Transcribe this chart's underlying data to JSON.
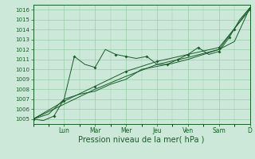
{
  "xlabel": "Pression niveau de la mer( hPa )",
  "ylim": [
    1004.5,
    1016.5
  ],
  "yticks": [
    1005,
    1006,
    1007,
    1008,
    1009,
    1010,
    1011,
    1012,
    1013,
    1014,
    1015,
    1016
  ],
  "day_labels": [
    "Lun",
    "Mar",
    "Mer",
    "Jeu",
    "Ven",
    "Sam",
    "D"
  ],
  "day_positions": [
    1,
    2,
    3,
    4,
    5,
    6,
    7
  ],
  "background_color": "#cce8d8",
  "grid_color": "#99ccaa",
  "line_color": "#1a5c2a",
  "series1_x": [
    0,
    0.33,
    0.67,
    1.0,
    1.33,
    1.67,
    2.0,
    2.33,
    2.67,
    3.0,
    3.33,
    3.67,
    4.0,
    4.33,
    4.67,
    5.0,
    5.33,
    5.67,
    6.0,
    6.33,
    6.67,
    7.0
  ],
  "series1_y": [
    1005.0,
    1004.85,
    1005.3,
    1007.0,
    1011.3,
    1010.5,
    1010.2,
    1012.0,
    1011.5,
    1011.3,
    1011.1,
    1011.3,
    1010.5,
    1010.5,
    1011.0,
    1011.5,
    1012.2,
    1011.5,
    1011.8,
    1013.2,
    1015.0,
    1016.2
  ],
  "series1_markers_x": [
    0,
    0.67,
    1.33,
    2.0,
    2.67,
    3.0,
    3.67,
    4.33,
    4.67,
    5.33,
    6.0,
    6.33,
    7.0
  ],
  "series1_markers_y": [
    1005.0,
    1005.3,
    1011.3,
    1010.2,
    1011.5,
    1011.3,
    1011.3,
    1010.5,
    1011.0,
    1012.2,
    1011.8,
    1013.2,
    1016.2
  ],
  "series2_x": [
    0,
    1.0,
    2.0,
    3.0,
    4.0,
    5.0,
    6.0,
    7.0
  ],
  "series2_y": [
    1005.0,
    1006.5,
    1008.0,
    1009.3,
    1010.5,
    1011.2,
    1012.0,
    1016.2
  ],
  "series3_x": [
    0,
    1.0,
    2.0,
    3.0,
    4.0,
    5.0,
    6.0,
    7.0
  ],
  "series3_y": [
    1005.0,
    1006.8,
    1008.3,
    1009.8,
    1010.8,
    1011.5,
    1012.2,
    1016.0
  ],
  "series3_markers_x": [
    0,
    1.0,
    2.0,
    3.0,
    4.0,
    5.0,
    6.0,
    6.5,
    7.0
  ],
  "series3_markers_y": [
    1005.0,
    1006.8,
    1008.3,
    1009.8,
    1010.8,
    1011.5,
    1012.2,
    1014.0,
    1016.0
  ],
  "series4_x": [
    0,
    0.5,
    1.0,
    1.5,
    2.0,
    2.5,
    3.0,
    3.5,
    4.0,
    4.5,
    5.0,
    5.5,
    6.0,
    6.5,
    7.0
  ],
  "series4_y": [
    1005.0,
    1005.5,
    1007.0,
    1007.5,
    1007.8,
    1008.5,
    1009.0,
    1010.0,
    1010.3,
    1010.6,
    1011.0,
    1011.5,
    1012.0,
    1012.8,
    1016.2
  ],
  "xlim": [
    0,
    7
  ],
  "xlabel_fontsize": 7,
  "ytick_fontsize": 5,
  "xtick_fontsize": 5.5
}
